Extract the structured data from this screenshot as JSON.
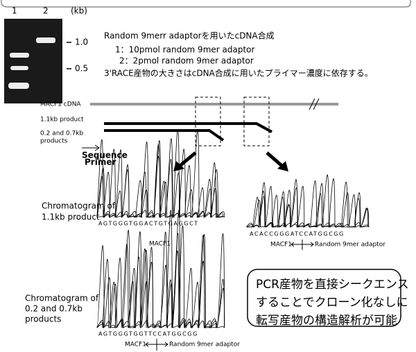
{
  "gel": {
    "lanes": [
      "1",
      "2"
    ],
    "unit": "(kb)",
    "markers": [
      "1.0",
      "0.5"
    ]
  },
  "description": {
    "title": "Random 9merr adaptorを用いたcDNA合成",
    "items": [
      "1：10pmol random 9mer adaptor",
      "2：2pmol random 9mer adaptor"
    ],
    "note": "3'RACE産物の大きさはcDNA合成に用いたプライマー濃度に依存する。"
  },
  "schematic": {
    "cdna": "MACF1 cDNA",
    "product1": "1.1kb product",
    "product2": [
      "0.2 and 0.7kb",
      "products"
    ],
    "primer": [
      "Sequence",
      "Primer"
    ]
  },
  "chromatograms": [
    {
      "label": [
        "Chromatogram of",
        "1.1kb product"
      ],
      "sequence": "AGTGGGTGGACTGTGAGGCT",
      "left": "MACF1"
    },
    {
      "sequence": "ACACCGGGATCCATGGCGG",
      "left": "MACF1",
      "right": "Random 9mer adaptor"
    },
    {
      "label": [
        "Chromatogram of",
        "0.2 and 0.7kb",
        "products"
      ],
      "sequence": "AGTGGGTGGTTCCATGGCGG",
      "left": "MACF1",
      "right": "Random 9mer adaptor"
    }
  ],
  "callout": [
    "PCR産物を直接シークエンス",
    "することでクローン化なしに",
    "転写産物の構造解析が可能"
  ]
}
